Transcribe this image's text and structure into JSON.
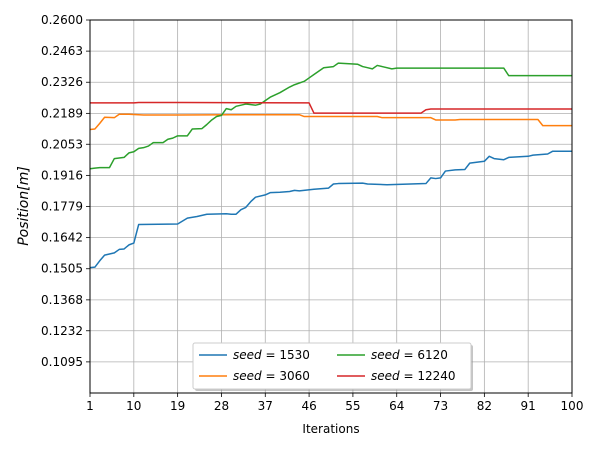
{
  "chart_data": {
    "type": "line",
    "title": "",
    "xlabel": "Iterations",
    "ylabel": "Position[m]",
    "xlim": [
      1,
      100
    ],
    "ylim": [
      0.0958,
      0.26
    ],
    "x_ticks": [
      1,
      10,
      19,
      28,
      37,
      46,
      55,
      64,
      73,
      82,
      91,
      100
    ],
    "y_ticks": [
      0.1095,
      0.1232,
      0.1368,
      0.1505,
      0.1642,
      0.1779,
      0.1916,
      0.2053,
      0.2189,
      0.2326,
      0.2463,
      0.26
    ],
    "y_tick_labels": [
      "0.1095",
      "0.1232",
      "0.1368",
      "0.1505",
      "0.1642",
      "0.1779",
      "0.1916",
      "0.2053",
      "0.2189",
      "0.2326",
      "0.2463",
      "0.2600"
    ],
    "x_tick_labels": [
      "1",
      "10",
      "19",
      "28",
      "37",
      "46",
      "55",
      "64",
      "73",
      "82",
      "91",
      "100"
    ],
    "grid": true,
    "legend_position": "bottom-center",
    "series": [
      {
        "name": "seed = 1530",
        "color": "#1f77b4",
        "points": [
          [
            1,
            0.151
          ],
          [
            2,
            0.1512
          ],
          [
            3,
            0.154
          ],
          [
            4,
            0.1565
          ],
          [
            5,
            0.157
          ],
          [
            6,
            0.1575
          ],
          [
            7,
            0.159
          ],
          [
            8,
            0.1592
          ],
          [
            9,
            0.161
          ],
          [
            10,
            0.1618
          ],
          [
            11,
            0.17
          ],
          [
            19,
            0.1702
          ],
          [
            21,
            0.1728
          ],
          [
            23,
            0.1735
          ],
          [
            25,
            0.1745
          ],
          [
            29,
            0.1747
          ],
          [
            30,
            0.1745
          ],
          [
            31,
            0.1745
          ],
          [
            32,
            0.1765
          ],
          [
            33,
            0.1775
          ],
          [
            34,
            0.18
          ],
          [
            35,
            0.182
          ],
          [
            37,
            0.183
          ],
          [
            38,
            0.184
          ],
          [
            40,
            0.1842
          ],
          [
            42,
            0.1845
          ],
          [
            43,
            0.185
          ],
          [
            44,
            0.1848
          ],
          [
            47,
            0.1855
          ],
          [
            50,
            0.186
          ],
          [
            51,
            0.1878
          ],
          [
            52,
            0.188
          ],
          [
            57,
            0.1882
          ],
          [
            58,
            0.1878
          ],
          [
            62,
            0.1875
          ],
          [
            70,
            0.188
          ],
          [
            71,
            0.1905
          ],
          [
            72,
            0.1902
          ],
          [
            73,
            0.1905
          ],
          [
            74,
            0.1935
          ],
          [
            76,
            0.194
          ],
          [
            78,
            0.1942
          ],
          [
            79,
            0.197
          ],
          [
            82,
            0.1978
          ],
          [
            83,
            0.2
          ],
          [
            84,
            0.199
          ],
          [
            86,
            0.1985
          ],
          [
            87,
            0.1995
          ],
          [
            91,
            0.2
          ],
          [
            92,
            0.2005
          ],
          [
            95,
            0.201
          ],
          [
            96,
            0.2022
          ],
          [
            100,
            0.2022
          ]
        ]
      },
      {
        "name": "seed = 3060",
        "color": "#ff7f0e",
        "points": [
          [
            1,
            0.2118
          ],
          [
            2,
            0.212
          ],
          [
            3,
            0.2145
          ],
          [
            4,
            0.2172
          ],
          [
            6,
            0.217
          ],
          [
            7,
            0.2185
          ],
          [
            9,
            0.2185
          ],
          [
            12,
            0.2182
          ],
          [
            14,
            0.2182
          ],
          [
            19,
            0.2182
          ],
          [
            30,
            0.2183
          ],
          [
            44,
            0.2183
          ],
          [
            45,
            0.2175
          ],
          [
            60,
            0.2175
          ],
          [
            61,
            0.217
          ],
          [
            71,
            0.217
          ],
          [
            72,
            0.216
          ],
          [
            76,
            0.216
          ],
          [
            77,
            0.2162
          ],
          [
            93,
            0.2162
          ],
          [
            94,
            0.2135
          ],
          [
            100,
            0.2135
          ]
        ]
      },
      {
        "name": "seed = 6120",
        "color": "#2ca02c",
        "points": [
          [
            1,
            0.1945
          ],
          [
            2,
            0.1948
          ],
          [
            3,
            0.195
          ],
          [
            5,
            0.195
          ],
          [
            6,
            0.199
          ],
          [
            8,
            0.1995
          ],
          [
            9,
            0.2015
          ],
          [
            10,
            0.202
          ],
          [
            11,
            0.2035
          ],
          [
            12,
            0.2038
          ],
          [
            13,
            0.2045
          ],
          [
            14,
            0.206
          ],
          [
            16,
            0.206
          ],
          [
            17,
            0.2075
          ],
          [
            18,
            0.208
          ],
          [
            19,
            0.209
          ],
          [
            21,
            0.209
          ],
          [
            22,
            0.212
          ],
          [
            24,
            0.2122
          ],
          [
            25,
            0.214
          ],
          [
            26,
            0.216
          ],
          [
            27,
            0.2175
          ],
          [
            28,
            0.218
          ],
          [
            29,
            0.221
          ],
          [
            30,
            0.2205
          ],
          [
            31,
            0.222
          ],
          [
            33,
            0.223
          ],
          [
            35,
            0.2225
          ],
          [
            36,
            0.223
          ],
          [
            37,
            0.2245
          ],
          [
            38,
            0.226
          ],
          [
            40,
            0.228
          ],
          [
            42,
            0.2305
          ],
          [
            43,
            0.2315
          ],
          [
            45,
            0.233
          ],
          [
            46,
            0.2345
          ],
          [
            47,
            0.236
          ],
          [
            48,
            0.2375
          ],
          [
            49,
            0.239
          ],
          [
            51,
            0.2395
          ],
          [
            52,
            0.241
          ],
          [
            56,
            0.2405
          ],
          [
            57,
            0.2395
          ],
          [
            58,
            0.239
          ],
          [
            59,
            0.2385
          ],
          [
            60,
            0.24
          ],
          [
            61,
            0.2395
          ],
          [
            63,
            0.2385
          ],
          [
            64,
            0.2388
          ],
          [
            86,
            0.2388
          ],
          [
            87,
            0.2355
          ],
          [
            100,
            0.2355
          ]
        ]
      },
      {
        "name": "seed = 12240",
        "color": "#d62728",
        "points": [
          [
            1,
            0.2235
          ],
          [
            10,
            0.2235
          ],
          [
            11,
            0.2237
          ],
          [
            20,
            0.2237
          ],
          [
            46,
            0.2235
          ],
          [
            47,
            0.219
          ],
          [
            69,
            0.219
          ],
          [
            70,
            0.2205
          ],
          [
            71,
            0.2208
          ],
          [
            100,
            0.2208
          ]
        ]
      }
    ],
    "legend": [
      {
        "math": "seed",
        "eq": " = ",
        "value": "1530",
        "color": "#1f77b4"
      },
      {
        "math": "seed",
        "eq": " = ",
        "value": "3060",
        "color": "#ff7f0e"
      },
      {
        "math": "seed",
        "eq": " = ",
        "value": "6120",
        "color": "#2ca02c"
      },
      {
        "math": "seed",
        "eq": " = ",
        "value": "12240",
        "color": "#d62728"
      }
    ]
  }
}
